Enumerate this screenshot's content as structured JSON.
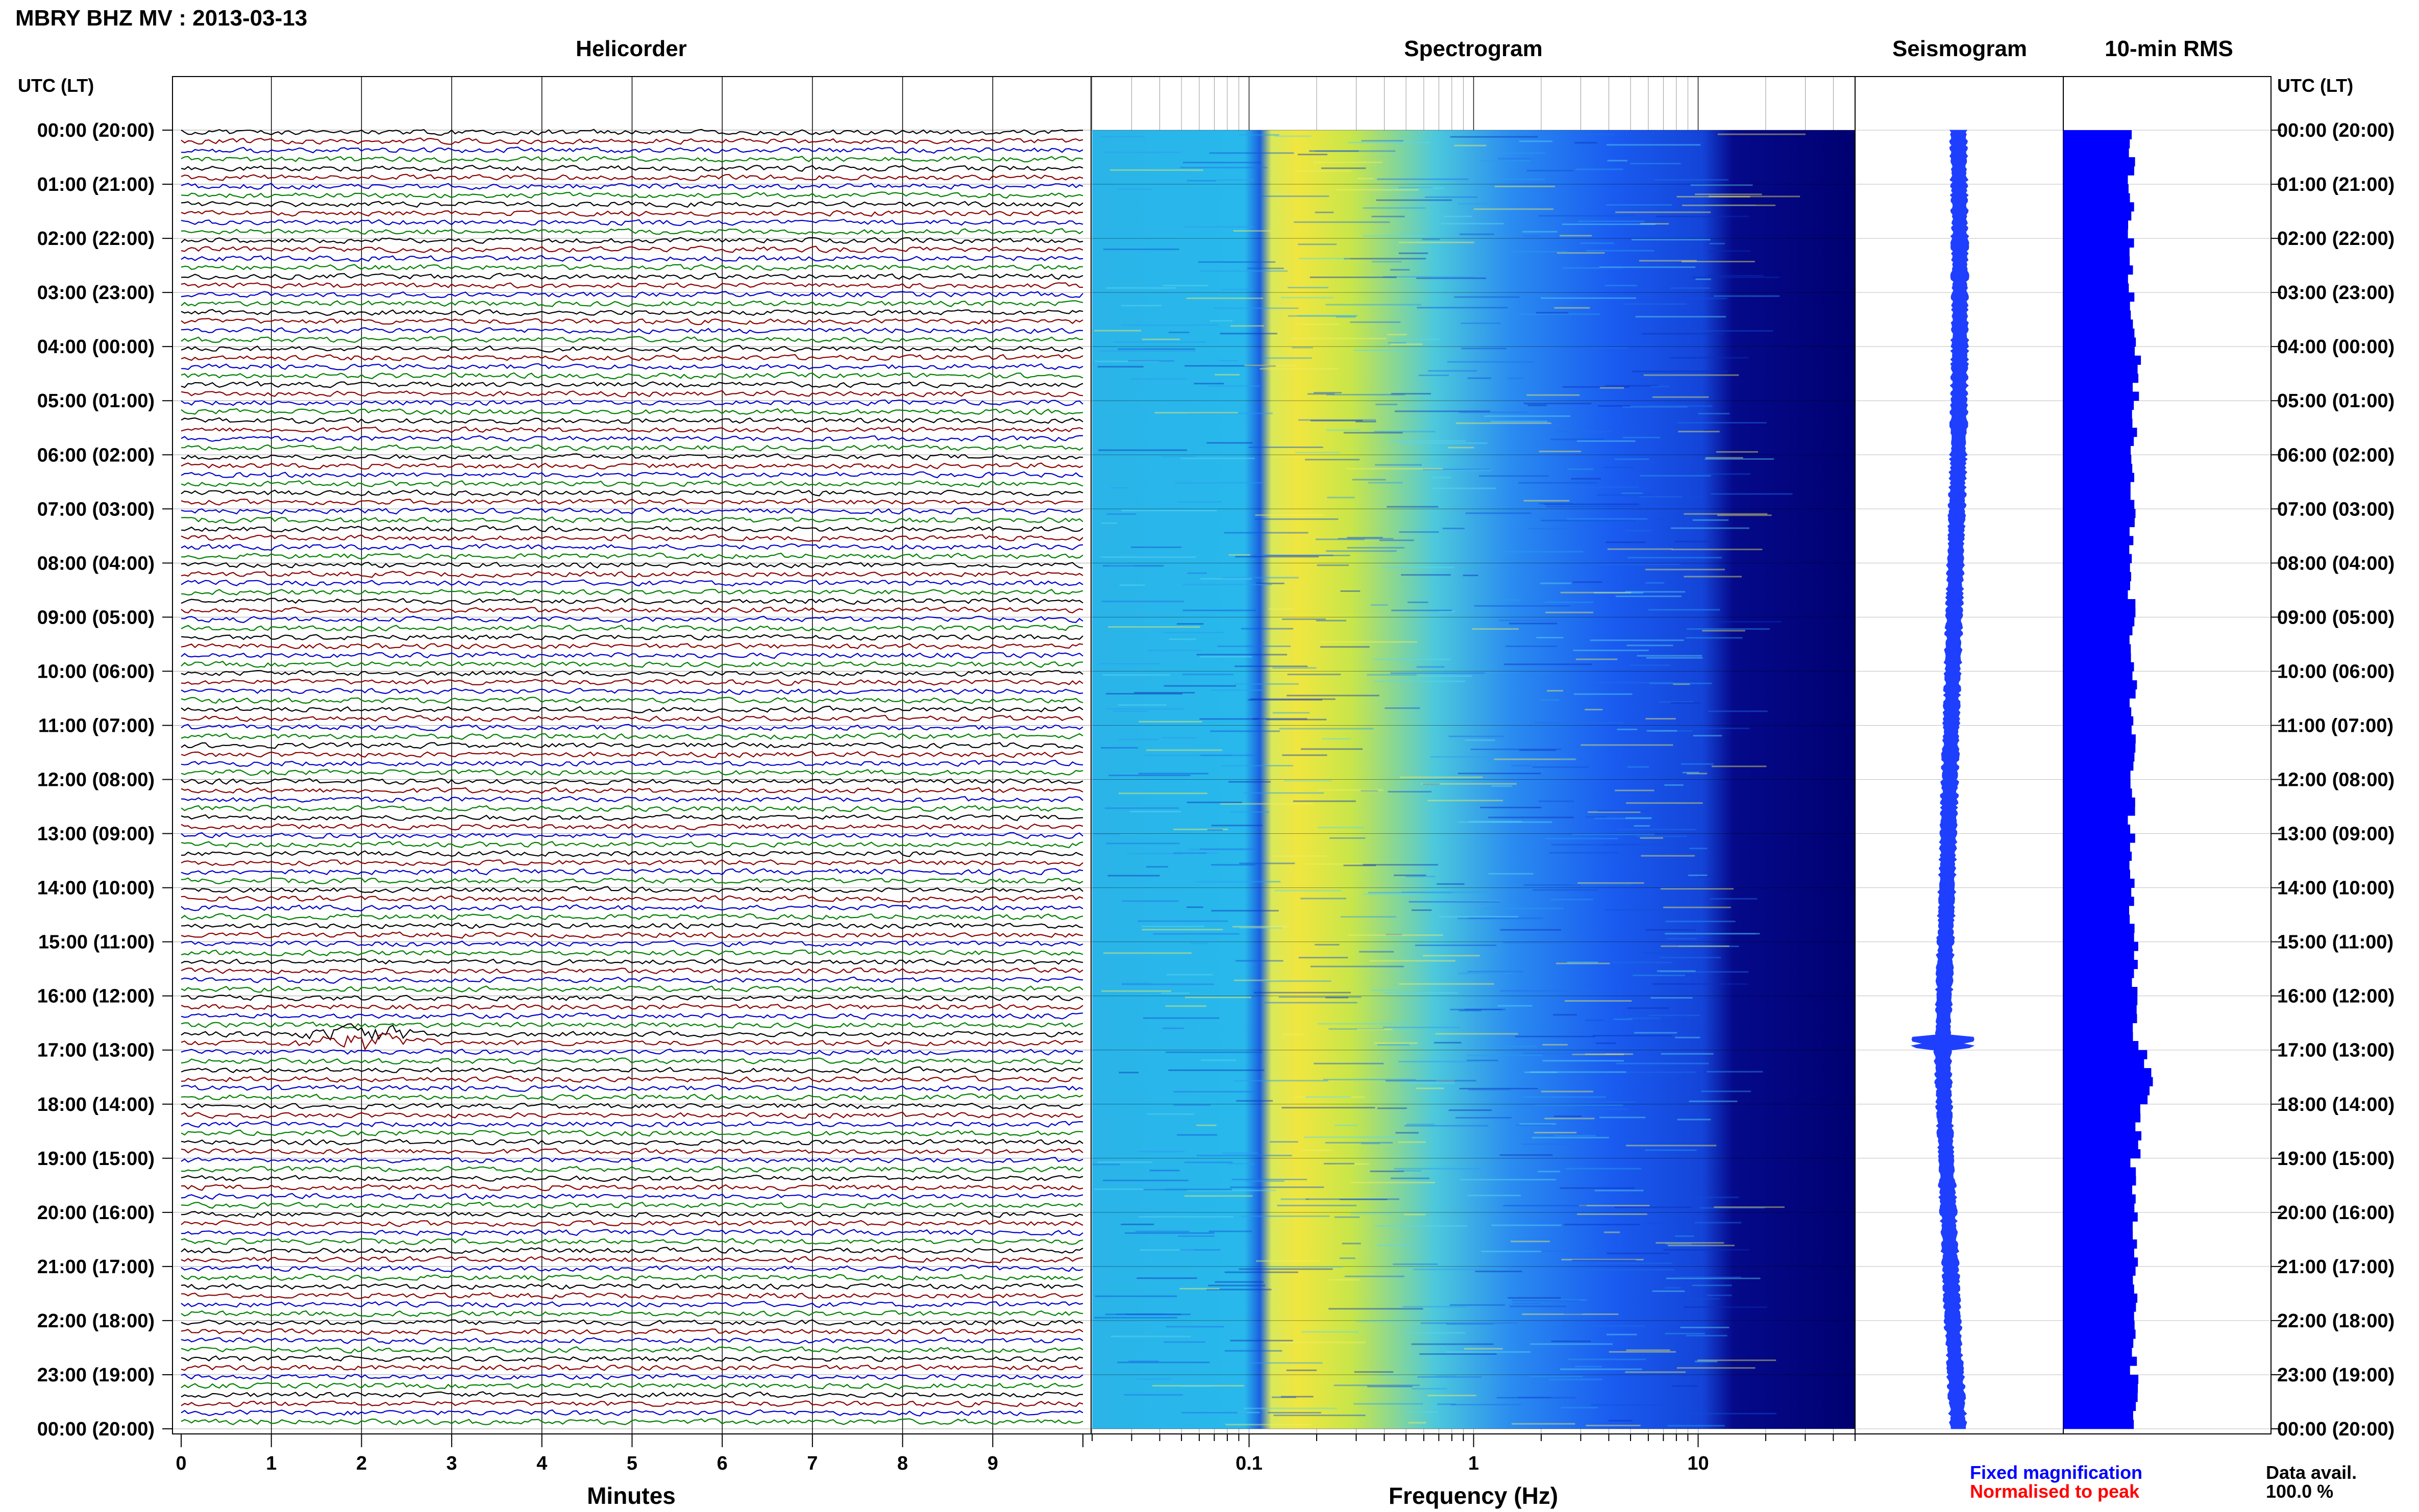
{
  "title": "MBRY BHZ MV : 2013-03-13",
  "panels": {
    "helicorder": "Helicorder",
    "spectrogram": "Spectrogram",
    "seismogram": "Seismogram",
    "rms": "10-min RMS"
  },
  "axis_header_left": "UTC (LT)",
  "axis_header_right": "UTC (LT)",
  "time_labels": [
    "00:00 (20:00)",
    "01:00 (21:00)",
    "02:00 (22:00)",
    "03:00 (23:00)",
    "04:00 (00:00)",
    "05:00 (01:00)",
    "06:00 (02:00)",
    "07:00 (03:00)",
    "08:00 (04:00)",
    "09:00 (05:00)",
    "10:00 (06:00)",
    "11:00 (07:00)",
    "12:00 (08:00)",
    "13:00 (09:00)",
    "14:00 (10:00)",
    "15:00 (11:00)",
    "16:00 (12:00)",
    "17:00 (13:00)",
    "18:00 (14:00)",
    "19:00 (15:00)",
    "20:00 (16:00)",
    "21:00 (17:00)",
    "22:00 (18:00)",
    "23:00 (19:00)",
    "00:00 (20:00)"
  ],
  "helicorder_axis": {
    "label": "Minutes",
    "ticks": [
      "0",
      "1",
      "2",
      "3",
      "4",
      "5",
      "6",
      "7",
      "8",
      "9"
    ]
  },
  "spectrogram_axis": {
    "label": "Frequency (Hz)",
    "ticks": [
      "0.1",
      "1",
      "10"
    ]
  },
  "legend": {
    "fixed": "Fixed magnification",
    "normalised": "Normalised to peak",
    "fixed_color": "#0000ff",
    "normalised_color": "#ff0000"
  },
  "data_avail": {
    "label": "Data avail.",
    "value": "100.0 %"
  },
  "colors": {
    "trace": [
      "#000000",
      "#8b0000",
      "#0000cd",
      "#008000"
    ],
    "rms_bar": "#0000ff",
    "seismogram": "#1f3fff"
  },
  "chart_data": [
    {
      "type": "line",
      "title": "Helicorder",
      "xlabel": "Minutes",
      "xlim": [
        0,
        10
      ],
      "rows": 144,
      "row_minutes": 10,
      "series_colors_cycle": [
        "black",
        "darkred",
        "blue",
        "green"
      ],
      "events": [
        {
          "hour": 16.75,
          "minute": 2.0,
          "note": ""
        }
      ]
    },
    {
      "type": "heatmap",
      "title": "Spectrogram",
      "xlabel": "Frequency (Hz)",
      "xscale": "log",
      "xlim": [
        0.02,
        50
      ],
      "ylim_hours": [
        0,
        24
      ],
      "colormap": [
        "#00007a",
        "#1a3cff",
        "#3cc8f0",
        "#e6f03c",
        "#ff9a1e"
      ]
    },
    {
      "type": "line",
      "title": "Seismogram",
      "ylim_hours": [
        0,
        24
      ],
      "offset_hours": [
        0,
        2,
        4,
        6,
        8,
        10,
        12,
        14,
        16,
        17,
        18,
        20,
        22,
        24
      ],
      "offset_values": [
        0.8,
        0.9,
        0.9,
        0.8,
        0.6,
        0.4,
        0.2,
        0.0,
        -0.2,
        -0.3,
        -0.2,
        0.1,
        0.4,
        0.8
      ]
    },
    {
      "type": "bar",
      "title": "10-min RMS",
      "ylim_hours": [
        0,
        24
      ],
      "bins": 144,
      "hourly_mean_relative": [
        0.95,
        0.96,
        0.94,
        0.97,
        1.03,
        1.0,
        0.98,
        0.97,
        0.96,
        0.97,
        0.98,
        0.97,
        0.96,
        0.98,
        0.97,
        1.0,
        1.01,
        1.2,
        1.05,
        0.98,
        1.0,
        1.02,
        0.99,
        1.04
      ]
    }
  ]
}
